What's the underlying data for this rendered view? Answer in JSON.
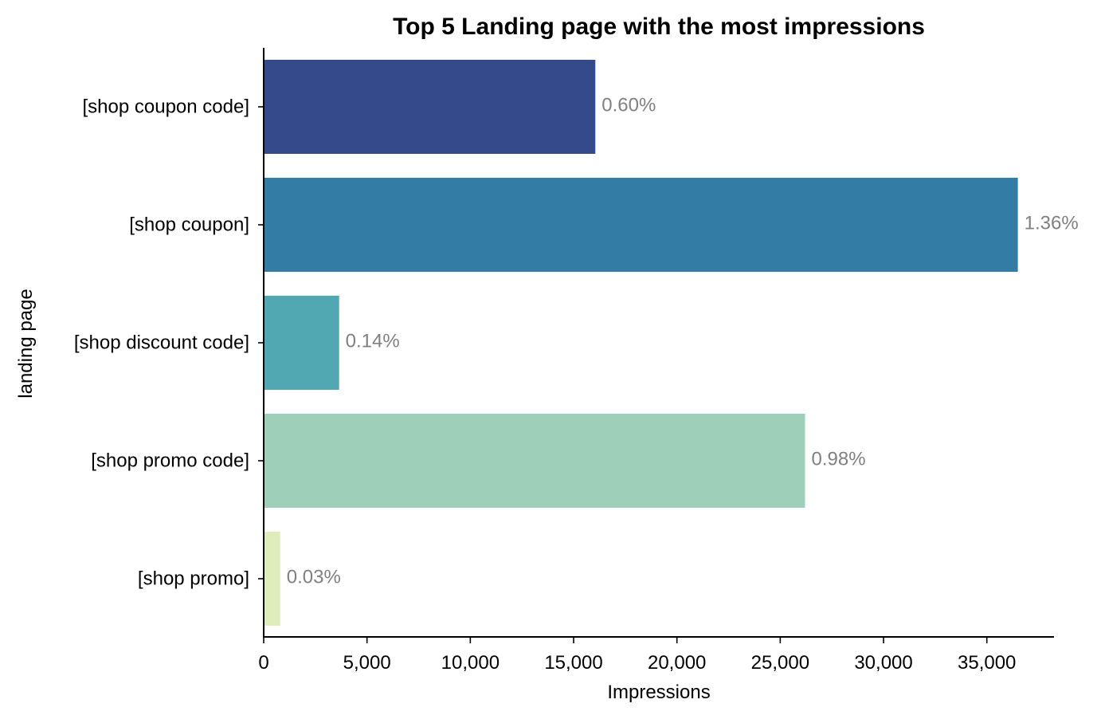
{
  "chart_data": {
    "type": "bar",
    "orientation": "horizontal",
    "title": "Top 5 Landing page with the most impressions",
    "xlabel": "Impressions",
    "ylabel": "landing page",
    "categories": [
      "[shop coupon code]",
      "[shop coupon]",
      "[shop discount code]",
      "[shop promo code]",
      "[shop promo]"
    ],
    "values": [
      16050,
      36500,
      3650,
      26200,
      800
    ],
    "data_labels": [
      "0.60%",
      "1.36%",
      "0.14%",
      "0.98%",
      "0.03%"
    ],
    "colors": [
      "#354a8b",
      "#337ca5",
      "#52a8b2",
      "#9ecfb8",
      "#deedb9"
    ],
    "xlim": [
      0,
      38250
    ],
    "xticks": [
      0,
      5000,
      10000,
      15000,
      20000,
      25000,
      30000,
      35000
    ],
    "xtick_labels": [
      "0",
      "5,000",
      "10,000",
      "15,000",
      "20,000",
      "25,000",
      "30,000",
      "35,000"
    ],
    "grid": false,
    "legend": "none"
  }
}
